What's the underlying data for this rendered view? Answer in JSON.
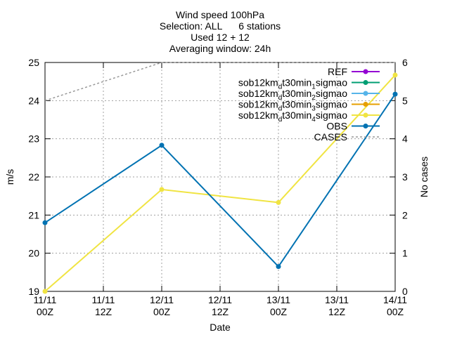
{
  "chart_data": {
    "type": "line",
    "title_lines": [
      "Wind speed 100hPa",
      "Selection: ALL      6 stations",
      "Used 12 + 12",
      "Averaging window: 24h"
    ],
    "xlabel": "Date",
    "ylabel": "m/s",
    "y2label": "No cases",
    "ylim": [
      19,
      25
    ],
    "y2lim": [
      0,
      6
    ],
    "yticks": [
      "19",
      "20",
      "21",
      "22",
      "23",
      "24",
      "25"
    ],
    "y2ticks": [
      "0",
      "1",
      "2",
      "3",
      "4",
      "5",
      "6"
    ],
    "xticks": [
      {
        "top": "11/11",
        "bottom": "00Z"
      },
      {
        "top": "11/11",
        "bottom": "12Z"
      },
      {
        "top": "12/11",
        "bottom": "00Z"
      },
      {
        "top": "12/11",
        "bottom": "12Z"
      },
      {
        "top": "13/11",
        "bottom": "00Z"
      },
      {
        "top": "13/11",
        "bottom": "12Z"
      },
      {
        "top": "14/11",
        "bottom": "00Z"
      }
    ],
    "grid": true,
    "legend_position": "top-right",
    "series": [
      {
        "key": "ref",
        "label": "REF",
        "color": "#9400d3",
        "axis": "y",
        "x": [],
        "y": []
      },
      {
        "key": "s1",
        "label_base": "sob12km",
        "sub1": "d",
        "mid": "t30min",
        "sub2": "1",
        "tail": "sigmao",
        "color": "#009e73",
        "axis": "y",
        "x": [],
        "y": []
      },
      {
        "key": "s2",
        "label_base": "sob12km",
        "sub1": "d",
        "mid": "t30min",
        "sub2": "2",
        "tail": "sigmao",
        "color": "#56b4e9",
        "axis": "y",
        "x": [],
        "y": []
      },
      {
        "key": "s3",
        "label_base": "sob12km",
        "sub1": "d",
        "mid": "t30min",
        "sub2": "3",
        "tail": "sigmao",
        "color": "#e69f00",
        "axis": "y",
        "x": [],
        "y": []
      },
      {
        "key": "s4",
        "label_base": "sob12km",
        "sub1": "d",
        "mid": "t30min",
        "sub2": "4",
        "tail": "sigmao",
        "color": "#f0e442",
        "axis": "y",
        "x": [
          "11/11 00Z",
          "12/11 00Z",
          "13/11 00Z",
          "14/11 00Z"
        ],
        "y": [
          19.0,
          21.67,
          21.33,
          24.67
        ]
      },
      {
        "key": "obs",
        "label": "OBS",
        "color": "#0072b2",
        "axis": "y",
        "x": [
          "11/11 00Z",
          "12/11 00Z",
          "13/11 00Z",
          "14/11 00Z"
        ],
        "y": [
          20.8,
          22.83,
          19.65,
          24.17
        ]
      },
      {
        "key": "cases",
        "label": "CASES",
        "color": "#999999",
        "axis": "y2",
        "dashed": true,
        "x": [
          "11/11 00Z",
          "12/11 00Z",
          "13/11 00Z",
          "14/11 00Z"
        ],
        "y": [
          5,
          6,
          6,
          6
        ]
      }
    ]
  }
}
